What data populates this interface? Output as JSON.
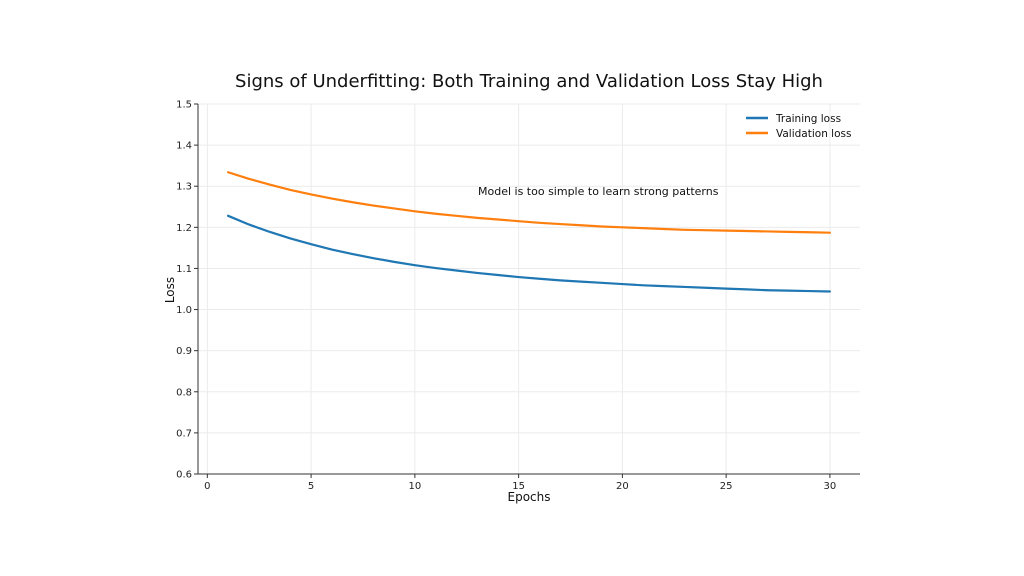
{
  "chart_data": {
    "type": "line",
    "title": "Signs of Underfitting: Both Training and Validation Loss Stay High",
    "xlabel": "Epochs",
    "ylabel": "Loss",
    "xlim": [
      -0.45,
      31.45
    ],
    "ylim": [
      0.6,
      1.5
    ],
    "xticks": [
      0,
      5,
      10,
      15,
      20,
      25,
      30
    ],
    "yticks": [
      0.6,
      0.7,
      0.8,
      0.9,
      1.0,
      1.1,
      1.2,
      1.3,
      1.4,
      1.5
    ],
    "ytick_labels": [
      "0.6",
      "0.7",
      "0.8",
      "0.9",
      "1.0",
      "1.1",
      "1.2",
      "1.3",
      "1.4",
      "1.5"
    ],
    "grid": true,
    "legend_position": "top-right",
    "series": [
      {
        "name": "Training loss",
        "color": "#1f77b4",
        "x": [
          1,
          2,
          3,
          4,
          5,
          6,
          7,
          8,
          9,
          10,
          11,
          12,
          13,
          14,
          15,
          16,
          17,
          18,
          19,
          20,
          21,
          22,
          23,
          24,
          25,
          26,
          27,
          28,
          29,
          30
        ],
        "values": [
          1.228,
          1.207,
          1.189,
          1.173,
          1.159,
          1.146,
          1.135,
          1.125,
          1.116,
          1.108,
          1.101,
          1.095,
          1.089,
          1.084,
          1.079,
          1.075,
          1.071,
          1.068,
          1.065,
          1.062,
          1.059,
          1.057,
          1.055,
          1.053,
          1.051,
          1.049,
          1.047,
          1.046,
          1.045,
          1.044
        ]
      },
      {
        "name": "Validation loss",
        "color": "#ff7f0e",
        "x": [
          1,
          2,
          3,
          4,
          5,
          6,
          7,
          8,
          9,
          10,
          11,
          12,
          13,
          14,
          15,
          16,
          17,
          18,
          19,
          20,
          21,
          22,
          23,
          24,
          25,
          26,
          27,
          28,
          29,
          30
        ],
        "values": [
          1.334,
          1.318,
          1.304,
          1.291,
          1.28,
          1.27,
          1.261,
          1.253,
          1.246,
          1.239,
          1.233,
          1.228,
          1.223,
          1.219,
          1.215,
          1.211,
          1.208,
          1.205,
          1.202,
          1.2,
          1.198,
          1.196,
          1.194,
          1.193,
          1.192,
          1.191,
          1.19,
          1.189,
          1.188,
          1.187
        ]
      }
    ],
    "annotation": {
      "text": "Model is too simple to learn strong patterns",
      "x": 13,
      "y": 1.28
    }
  }
}
